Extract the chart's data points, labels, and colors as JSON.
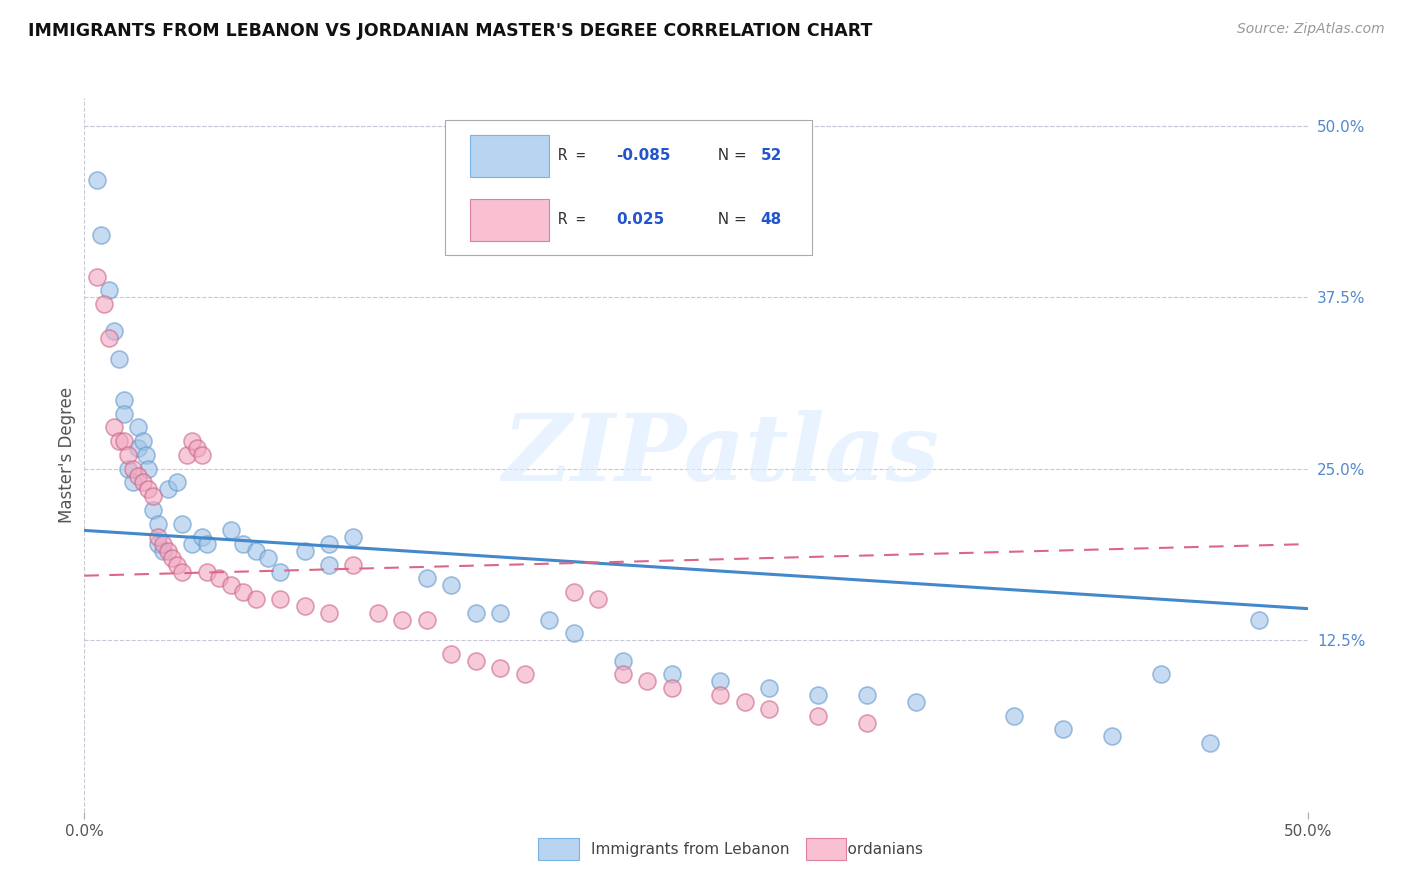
{
  "title": "IMMIGRANTS FROM LEBANON VS JORDANIAN MASTER'S DEGREE CORRELATION CHART",
  "source": "Source: ZipAtlas.com",
  "ylabel": "Master's Degree",
  "right_yticks": [
    "50.0%",
    "37.5%",
    "25.0%",
    "12.5%"
  ],
  "right_ytick_vals": [
    0.5,
    0.375,
    0.25,
    0.125
  ],
  "xlim": [
    0.0,
    0.5
  ],
  "ylim": [
    0.0,
    0.52
  ],
  "watermark_text": "ZIPatlas",
  "blue_color": "#a0c4e8",
  "pink_color": "#f0a8c0",
  "blue_line_color": "#4488cc",
  "pink_line_color": "#dd6688",
  "grid_color": "#c8c8d8",
  "background_color": "#ffffff",
  "blue_scatter_x": [
    0.005,
    0.007,
    0.01,
    0.012,
    0.014,
    0.016,
    0.016,
    0.018,
    0.02,
    0.022,
    0.022,
    0.024,
    0.025,
    0.026,
    0.028,
    0.03,
    0.03,
    0.032,
    0.034,
    0.038,
    0.04,
    0.044,
    0.048,
    0.05,
    0.06,
    0.065,
    0.07,
    0.075,
    0.08,
    0.09,
    0.1,
    0.1,
    0.11,
    0.14,
    0.15,
    0.16,
    0.17,
    0.19,
    0.2,
    0.22,
    0.24,
    0.26,
    0.28,
    0.3,
    0.32,
    0.34,
    0.38,
    0.4,
    0.42,
    0.44,
    0.46,
    0.48
  ],
  "blue_scatter_y": [
    0.46,
    0.42,
    0.38,
    0.35,
    0.33,
    0.3,
    0.29,
    0.25,
    0.24,
    0.28,
    0.265,
    0.27,
    0.26,
    0.25,
    0.22,
    0.21,
    0.195,
    0.19,
    0.235,
    0.24,
    0.21,
    0.195,
    0.2,
    0.195,
    0.205,
    0.195,
    0.19,
    0.185,
    0.175,
    0.19,
    0.195,
    0.18,
    0.2,
    0.17,
    0.165,
    0.145,
    0.145,
    0.14,
    0.13,
    0.11,
    0.1,
    0.095,
    0.09,
    0.085,
    0.085,
    0.08,
    0.07,
    0.06,
    0.055,
    0.1,
    0.05,
    0.14
  ],
  "pink_scatter_x": [
    0.005,
    0.008,
    0.01,
    0.012,
    0.014,
    0.016,
    0.018,
    0.02,
    0.022,
    0.024,
    0.026,
    0.028,
    0.03,
    0.032,
    0.034,
    0.036,
    0.038,
    0.04,
    0.042,
    0.044,
    0.046,
    0.048,
    0.05,
    0.055,
    0.06,
    0.065,
    0.07,
    0.08,
    0.09,
    0.1,
    0.11,
    0.12,
    0.13,
    0.14,
    0.15,
    0.16,
    0.17,
    0.18,
    0.2,
    0.21,
    0.22,
    0.23,
    0.24,
    0.26,
    0.27,
    0.28,
    0.3,
    0.32
  ],
  "pink_scatter_y": [
    0.39,
    0.37,
    0.345,
    0.28,
    0.27,
    0.27,
    0.26,
    0.25,
    0.245,
    0.24,
    0.235,
    0.23,
    0.2,
    0.195,
    0.19,
    0.185,
    0.18,
    0.175,
    0.26,
    0.27,
    0.265,
    0.26,
    0.175,
    0.17,
    0.165,
    0.16,
    0.155,
    0.155,
    0.15,
    0.145,
    0.18,
    0.145,
    0.14,
    0.14,
    0.115,
    0.11,
    0.105,
    0.1,
    0.16,
    0.155,
    0.1,
    0.095,
    0.09,
    0.085,
    0.08,
    0.075,
    0.07,
    0.065
  ],
  "blue_line_x0": 0.0,
  "blue_line_x1": 0.5,
  "blue_line_y0": 0.205,
  "blue_line_y1": 0.148,
  "pink_line_x0": 0.0,
  "pink_line_x1": 0.5,
  "pink_line_y0": 0.172,
  "pink_line_y1": 0.195
}
